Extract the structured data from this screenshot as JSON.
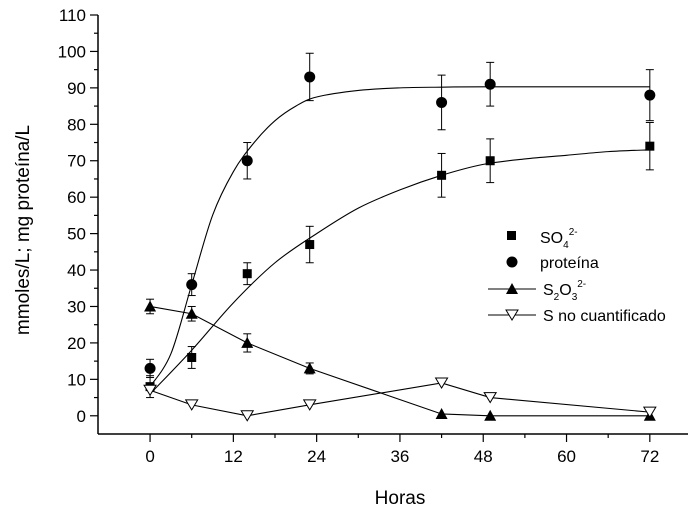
{
  "chart_data": {
    "type": "scatter",
    "title": "",
    "xlabel": "Horas",
    "ylabel": "mmoles/L;  mg proteína/L",
    "xlim": [
      -7.5,
      77.5
    ],
    "ylim": [
      -5,
      110
    ],
    "xticks": [
      0,
      12,
      24,
      36,
      48,
      60,
      72
    ],
    "yticks": [
      0,
      10,
      20,
      30,
      40,
      50,
      60,
      70,
      80,
      90,
      100,
      110
    ],
    "grid": false,
    "legend_position": "center-right",
    "series": [
      {
        "name_parts": {
          "base": "SO",
          "sub": "4",
          "sup": "2-"
        },
        "marker": "square",
        "x": [
          0,
          6,
          14,
          23,
          42,
          49,
          72
        ],
        "y": [
          8,
          16,
          39,
          47,
          66,
          70,
          74
        ],
        "err": [
          3,
          3,
          3,
          5,
          6,
          6,
          6.5
        ],
        "fit": {
          "type": "sigmoid",
          "x": [
            0,
            6,
            12,
            18,
            24,
            30,
            36,
            42,
            48,
            54,
            60,
            66,
            72
          ],
          "y": [
            6,
            18,
            31,
            42,
            50,
            57,
            62,
            66,
            69,
            70.5,
            71.5,
            72.5,
            73
          ]
        }
      },
      {
        "name": "proteína",
        "marker": "circle",
        "x": [
          0,
          6,
          14,
          23,
          42,
          49,
          72
        ],
        "y": [
          13,
          36,
          70,
          93,
          86,
          91,
          88
        ],
        "err": [
          2.5,
          3,
          5,
          6.5,
          7.5,
          6,
          7
        ],
        "fit": {
          "type": "sigmoid",
          "x": [
            0,
            3,
            6,
            9,
            12,
            15,
            18,
            21,
            24,
            30,
            36,
            42,
            48,
            60,
            72
          ],
          "y": [
            8,
            17,
            36,
            55,
            67,
            75,
            81,
            85,
            87.5,
            89.3,
            90,
            90.2,
            90.3,
            90.3,
            90.3
          ]
        }
      },
      {
        "name_parts": {
          "base": "S",
          "sub1": "2",
          "mid": "O",
          "sub2": "3",
          "sup": "2-"
        },
        "marker": "triangle-up",
        "x": [
          0,
          6,
          14,
          23,
          42,
          49,
          72
        ],
        "y": [
          30,
          28,
          20,
          13,
          0.5,
          0,
          0
        ],
        "err": [
          2,
          2,
          2.5,
          1.5,
          0,
          0,
          0
        ],
        "line": "connected"
      },
      {
        "name": "S no cuantificado",
        "marker": "triangle-down-open",
        "x": [
          0,
          6,
          14,
          23,
          42,
          49,
          72
        ],
        "y": [
          7,
          3,
          0,
          3,
          9,
          5,
          1
        ],
        "err": [
          0,
          0,
          0,
          0,
          0,
          0,
          0
        ],
        "line": "connected"
      }
    ]
  }
}
